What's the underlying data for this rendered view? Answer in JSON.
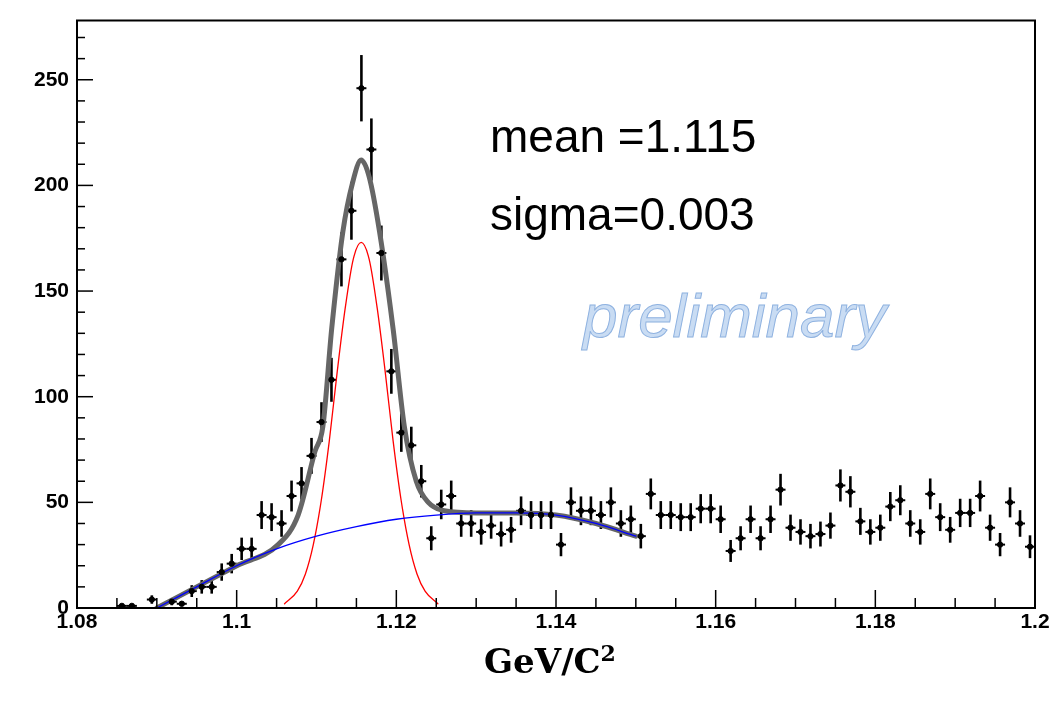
{
  "chart_data": {
    "type": "scatter",
    "xlabel": "GeV/C$^{2}$",
    "grid": false,
    "xlim": [
      1.08,
      1.2
    ],
    "xticks": [
      1.08,
      {
        "value": 1.085,
        "label": null
      },
      {
        "value": 1.09,
        "label": null
      },
      {
        "value": 1.095,
        "label": null
      },
      1.1,
      {
        "value": 1.105,
        "label": null
      },
      {
        "value": 1.11,
        "label": null
      },
      {
        "value": 1.115,
        "label": null
      },
      1.12,
      {
        "value": 1.125,
        "label": null
      },
      {
        "value": 1.13,
        "label": null
      },
      {
        "value": 1.135,
        "label": null
      },
      1.14,
      {
        "value": 1.145,
        "label": null
      },
      {
        "value": 1.15,
        "label": null
      },
      {
        "value": 1.155,
        "label": null
      },
      1.16,
      {
        "value": 1.165,
        "label": null
      },
      {
        "value": 1.17,
        "label": null
      },
      {
        "value": 1.175,
        "label": null
      },
      1.18,
      {
        "value": 1.185,
        "label": null
      },
      {
        "value": 1.19,
        "label": null
      },
      {
        "value": 1.195,
        "label": null
      },
      1.2
    ],
    "ylim": [
      0,
      278
    ],
    "yticks": [
      0,
      {
        "value": 10,
        "label": null
      },
      {
        "value": 20,
        "label": null
      },
      {
        "value": 30,
        "label": null
      },
      {
        "value": 40,
        "label": null
      },
      50,
      {
        "value": 60,
        "label": null
      },
      {
        "value": 70,
        "label": null
      },
      {
        "value": 80,
        "label": null
      },
      {
        "value": 90,
        "label": null
      },
      100,
      {
        "value": 110,
        "label": null
      },
      {
        "value": 120,
        "label": null
      },
      {
        "value": 130,
        "label": null
      },
      {
        "value": 140,
        "label": null
      },
      150,
      {
        "value": 160,
        "label": null
      },
      {
        "value": 170,
        "label": null
      },
      {
        "value": 180,
        "label": null
      },
      {
        "value": 190,
        "label": null
      },
      200,
      {
        "value": 210,
        "label": null
      },
      {
        "value": 220,
        "label": null
      },
      {
        "value": 230,
        "label": null
      },
      {
        "value": 240,
        "label": null
      },
      250,
      {
        "value": 260,
        "label": null
      },
      {
        "value": 270,
        "label": null
      }
    ],
    "annotations": [
      "mean =1.115",
      "sigma=0.003",
      "preliminary"
    ],
    "series": [
      {
        "type": "scatter",
        "color": "#000000",
        "x": [
          1.085625,
          1.086875,
          1.089375,
          1.091875,
          1.093125,
          1.094375,
          1.095625,
          1.096875,
          1.098125,
          1.099375,
          1.100625,
          1.101875,
          1.103125,
          1.104375,
          1.105625,
          1.106875,
          1.108125,
          1.109375,
          1.110625,
          1.111875,
          1.113125,
          1.114375,
          1.115625,
          1.116875,
          1.118125,
          1.119375,
          1.120625,
          1.121875,
          1.123125,
          1.124375,
          1.125625,
          1.126875,
          1.128125,
          1.129375,
          1.130625,
          1.131875,
          1.133125,
          1.134375,
          1.135625,
          1.136875,
          1.138125,
          1.139375,
          1.140625,
          1.141875,
          1.143125,
          1.144375,
          1.145625,
          1.146875,
          1.148125,
          1.149375,
          1.150625,
          1.151875,
          1.153125,
          1.154375,
          1.155625,
          1.156875,
          1.158125,
          1.159375,
          1.160625,
          1.161875,
          1.163125,
          1.164375,
          1.165625,
          1.166875,
          1.168125,
          1.169375,
          1.170625,
          1.171875,
          1.173125,
          1.174375,
          1.175625,
          1.176875,
          1.178125,
          1.179375,
          1.180625,
          1.181875,
          1.183125,
          1.184375,
          1.185625,
          1.186875,
          1.188125,
          1.189375,
          1.190625,
          1.191875,
          1.193125,
          1.194375,
          1.195625,
          1.196875,
          1.198125,
          1.199375
        ],
        "values": [
          1,
          1,
          4,
          3,
          2,
          8,
          10,
          10,
          17,
          21,
          28,
          28,
          44,
          43,
          40,
          53,
          59,
          72,
          88,
          108,
          165,
          188,
          246,
          217,
          168,
          112,
          83,
          77,
          60,
          33,
          49,
          53,
          40,
          40,
          36,
          39,
          35,
          37,
          46,
          44,
          44,
          44,
          30,
          50,
          46,
          46,
          44,
          50,
          40,
          42,
          34,
          54,
          44,
          44,
          43,
          43,
          47,
          47,
          42,
          27,
          33,
          42,
          33,
          42,
          56,
          38,
          36,
          34,
          35,
          39,
          58,
          55,
          41,
          36,
          38,
          48,
          51,
          40,
          36,
          54,
          43,
          37,
          45,
          45,
          53,
          38,
          30,
          50,
          40,
          29
        ],
        "errors": [
          null,
          null,
          2,
          1.7,
          null,
          2.8,
          3.2,
          3.2,
          4.1,
          4.6,
          5.3,
          5.3,
          6.6,
          6.6,
          6.3,
          7.3,
          7.7,
          8.5,
          9.4,
          10.4,
          12.8,
          13.7,
          15.7,
          14.7,
          13,
          10.6,
          9.1,
          8.8,
          7.7,
          5.7,
          7,
          7.3,
          6.3,
          6.3,
          6,
          6.2,
          5.9,
          6.1,
          6.8,
          6.6,
          6.6,
          6.6,
          5.5,
          7.1,
          6.8,
          6.8,
          6.6,
          7.1,
          6.3,
          6.5,
          5.8,
          7.3,
          6.6,
          6.6,
          6.6,
          6.6,
          6.9,
          6.9,
          6.5,
          5.2,
          5.7,
          6.5,
          5.7,
          6.5,
          7.5,
          6.2,
          6,
          5.8,
          5.9,
          6.2,
          7.6,
          7.4,
          6.4,
          6,
          6.2,
          6.9,
          7.1,
          6.3,
          6,
          7.3,
          6.6,
          6.1,
          6.7,
          6.7,
          7.3,
          6.2,
          5.5,
          7.1,
          6.3,
          5.4
        ],
        "xerrors": [
          0.000625,
          0.000625,
          0.000625,
          0.000625,
          0.000625,
          0.000625,
          0.000625,
          0.000625,
          0.000625,
          0.000625,
          0.000625,
          0.000625,
          0.000625,
          0.000625,
          0.000625,
          0.000625,
          0.000625,
          0.000625,
          0.000625,
          0.000625,
          0.000625,
          0.000625,
          0.000625,
          0.000625,
          0.000625,
          0.000625,
          0.000625,
          0.000625,
          0.000625,
          0.000625,
          0.000625,
          0.000625,
          0.000625,
          0.000625,
          0.000625,
          0.000625,
          0.000625,
          0.000625,
          0.000625,
          0.000625,
          0.000625,
          0.000625,
          0.000625,
          0.000625,
          0.000625,
          0.000625,
          0.000625,
          0.000625,
          0.000625,
          0.000625,
          0.000625,
          0.000625,
          0.000625,
          0.000625,
          0.000625,
          0.000625,
          0.000625,
          0.000625,
          0.000625,
          0.000625,
          0.000625,
          0.000625,
          0.000625,
          0.000625,
          0.000625,
          0.000625,
          0.000625,
          0.000625,
          0.000625,
          0.000625,
          0.000625,
          0.000625,
          0.000625,
          0.000625,
          0.000625,
          0.000625,
          0.000625,
          0.000625,
          0.000625,
          0.000625,
          0.000625,
          0.000625,
          0.000625,
          0.000625,
          0.000625,
          0.000625,
          0.000625,
          0.000625,
          0.000625,
          0.000625
        ]
      },
      {
        "type": "line",
        "color": "#666666",
        "x": [
          1.09,
          1.095,
          1.1,
          1.1052,
          1.1077,
          1.1098,
          1.1108,
          1.1119,
          1.1133,
          1.1145,
          1.1156,
          1.1166,
          1.1179,
          1.1196,
          1.121,
          1.1225,
          1.124,
          1.126,
          1.13,
          1.135,
          1.14,
          1.145,
          1.15
        ],
        "values": [
          0,
          10,
          20,
          30,
          44,
          74,
          86,
          132,
          178,
          201,
          212,
          204,
          178,
          132,
          86,
          60,
          50,
          46,
          45,
          45,
          44,
          40,
          34
        ]
      },
      {
        "type": "line",
        "color": "#ff0000",
        "x": [
          1.106,
          1.1076,
          1.1086,
          1.1096,
          1.1106,
          1.1116,
          1.1126,
          1.1136,
          1.1146,
          1.1156,
          1.1166,
          1.1176,
          1.1186,
          1.1196,
          1.1206,
          1.1216,
          1.1226,
          1.1236,
          1.1252
        ],
        "values": [
          2,
          8,
          16,
          30,
          51,
          79,
          112,
          142,
          165,
          173,
          165,
          142,
          112,
          79,
          51,
          30,
          16,
          8,
          2
        ]
      },
      {
        "type": "line",
        "color": "#0000ff",
        "x": [
          1.09,
          1.095,
          1.1,
          1.105,
          1.11,
          1.115,
          1.12,
          1.125,
          1.13,
          1.135,
          1.14,
          1.145,
          1.15
        ],
        "values": [
          0,
          10,
          20,
          28,
          34,
          38.5,
          42,
          44,
          45,
          45,
          44,
          40,
          34
        ]
      }
    ]
  }
}
